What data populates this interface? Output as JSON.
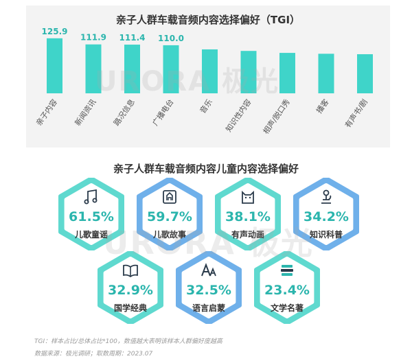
{
  "chart_data": [
    {
      "type": "bar",
      "title": "亲子人群车载音频内容选择偏好（TGI）",
      "categories": [
        "亲子内容",
        "新闻资讯",
        "路况信息",
        "广播电台",
        "音乐",
        "知识性内容",
        "相声/脱口秀",
        "播客",
        "有声书/剧"
      ],
      "values": [
        125.9,
        111.9,
        111.4,
        110.0,
        100.5,
        97.0,
        92.5,
        90.5,
        89.5
      ],
      "data_labels": [
        "125.9",
        "111.9",
        "111.4",
        "110.0",
        "",
        "",
        "",
        "",
        ""
      ],
      "bar_color": "#3fd4c9",
      "ylim": [
        0,
        135
      ],
      "grid": false,
      "legend": "none"
    },
    {
      "type": "table",
      "title": "亲子人群车载音频内容儿童内容选择偏好",
      "rows": [
        {
          "name": "儿歌童谣",
          "value": 61.5,
          "text": "61.5%",
          "icon": "music-note-icon",
          "style": "cyan"
        },
        {
          "name": "儿歌故事",
          "value": 59.7,
          "text": "59.7%",
          "icon": "story-book-icon",
          "style": "blue"
        },
        {
          "name": "有声动画",
          "value": 38.1,
          "text": "38.1%",
          "icon": "cat-animation-icon",
          "style": "cyan"
        },
        {
          "name": "知识科普",
          "value": 34.2,
          "text": "34.2%",
          "icon": "microscope-icon",
          "style": "blue"
        },
        {
          "name": "国学经典",
          "value": 32.9,
          "text": "32.9%",
          "icon": "open-book-icon",
          "style": "cyan"
        },
        {
          "name": "语言启蒙",
          "value": 32.5,
          "text": "32.5%",
          "icon": "letters-icon",
          "style": "blue"
        },
        {
          "name": "文学名著",
          "value": 23.4,
          "text": "23.4%",
          "icon": "stacked-books-icon",
          "style": "cyan"
        }
      ]
    }
  ],
  "colors": {
    "teal": "#2bb5ad",
    "hex_cyan_outer": "#5fd9cf",
    "hex_blue_outer": "#6fb0ea",
    "icon_dark": "#2a3a4a"
  },
  "watermark": "URORA 极光",
  "footnotes": [
    "TGI：样本占比/总体占比*100，数值越大表明该样本人群偏好度越高",
    "数据来源：极光调研；取数周期：2023.07"
  ]
}
